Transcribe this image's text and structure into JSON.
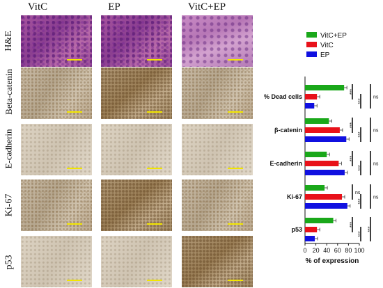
{
  "columns": [
    "VitC",
    "EP",
    "VitC+EP"
  ],
  "rows": [
    "H&E",
    "Beta-catenin",
    "E-cadherin",
    "Ki-67",
    "p53"
  ],
  "chart_data": {
    "type": "bar",
    "orientation": "horizontal",
    "categories": [
      "% Dead cells",
      "β-catenin",
      "E-cadherin",
      "Ki-67",
      "p53"
    ],
    "series": [
      {
        "name": "VitC+EP",
        "color": "#1aa81a",
        "values": [
          72,
          44,
          40,
          36,
          52
        ]
      },
      {
        "name": "VitC",
        "color": "#e8111a",
        "values": [
          22,
          64,
          62,
          68,
          22
        ]
      },
      {
        "name": "EP",
        "color": "#1010e0",
        "values": [
          17,
          76,
          73,
          78,
          18
        ]
      }
    ],
    "xlabel": "% of expression",
    "xticks": [
      "0",
      "20",
      "40",
      "60",
      "80",
      "100"
    ],
    "xlim": [
      0,
      100
    ],
    "legend_position": "top",
    "significance": [
      [
        "***",
        "***",
        "ns"
      ],
      [
        "***",
        "***",
        "ns"
      ],
      [
        "***",
        "***",
        "ns"
      ],
      [
        "ns",
        "***",
        "ns"
      ],
      [
        "***",
        "***",
        "***"
      ]
    ]
  }
}
